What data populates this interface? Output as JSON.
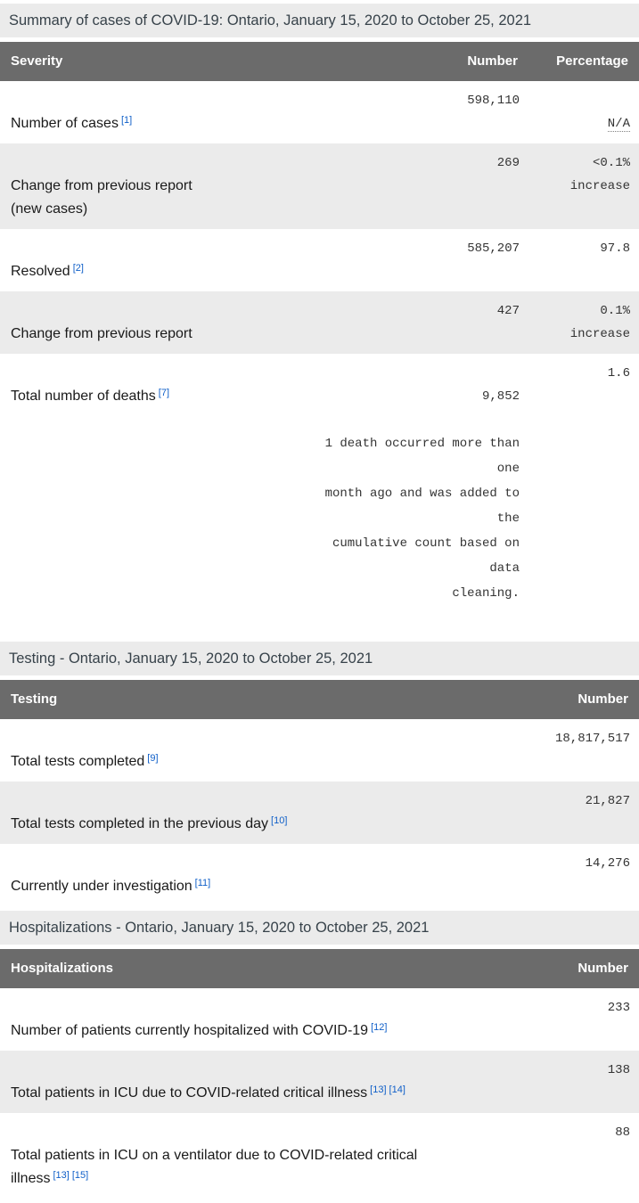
{
  "colors": {
    "header_bg": "#6b6b6b",
    "caption_bg": "#ebebeb",
    "alt_row_bg": "#ebebeb",
    "footnote_link": "#0f5fc8",
    "caption_text": "#37424a"
  },
  "tables": [
    {
      "caption": "Summary of cases of COVID-19: Ontario, January 15, 2020 to October 25, 2021",
      "headers": [
        "Severity",
        "Number",
        "Percentage"
      ],
      "rows": [
        {
          "label": "Number of cases",
          "footnotes": [
            "[1]"
          ],
          "number": "598,110",
          "percentage": "N/A"
        },
        {
          "label": "Change from previous report\n(new cases)",
          "footnotes": [],
          "number": "269",
          "percentage": "<0.1%\nincrease"
        },
        {
          "label": "Resolved",
          "footnotes": [
            "[2]"
          ],
          "number": "585,207",
          "percentage": "97.8"
        },
        {
          "label": "Change from previous report",
          "footnotes": [],
          "number": "427",
          "percentage": "0.1%\nincrease"
        },
        {
          "label": "Total number of deaths",
          "footnotes": [
            "[7]"
          ],
          "number": "9,852",
          "note": "1 death occurred more than one\nmonth ago and was added to the\ncumulative count based on data\ncleaning.",
          "percentage": "1.6"
        }
      ]
    },
    {
      "caption": "Testing - Ontario, January 15, 2020 to October 25, 2021",
      "headers": [
        "Testing",
        "Number"
      ],
      "rows": [
        {
          "label": "Total tests completed",
          "footnotes": [
            "[9]"
          ],
          "number": "18,817,517"
        },
        {
          "label": "Total tests completed in the previous day",
          "footnotes": [
            "[10]"
          ],
          "number": "21,827"
        },
        {
          "label": "Currently under investigation",
          "footnotes": [
            "[11]"
          ],
          "number": "14,276"
        }
      ]
    },
    {
      "caption": "Hospitalizations - Ontario, January 15, 2020 to October 25, 2021",
      "headers": [
        "Hospitalizations",
        "Number"
      ],
      "rows": [
        {
          "label": "Number of patients currently hospitalized with COVID-19",
          "footnotes": [
            "[12]"
          ],
          "number": "233"
        },
        {
          "label": "Total patients in ICU due to COVID-related critical illness",
          "footnotes": [
            "[13]",
            "[14]"
          ],
          "number": "138"
        },
        {
          "label": "Total patients in ICU on a ventilator due to COVID-related critical\nillness",
          "footnotes": [
            "[13]",
            "[15]"
          ],
          "number": "88"
        }
      ]
    }
  ]
}
